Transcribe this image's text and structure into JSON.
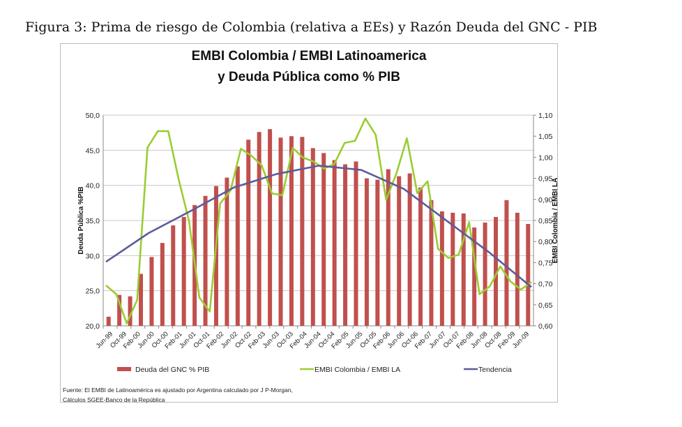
{
  "figure_caption": "Figura 3: Prima de riesgo de Colombia (relativa a EEs) y Razón Deuda del GNC - PIB",
  "chart_data": {
    "type": "bar+line",
    "title_line1": "EMBI Colombia / EMBI Latinoamerica",
    "title_line2": "y Deuda Pública como % PIB",
    "ylabel_left": "Deuda Pública %PIB",
    "ylabel_right": "EMBI Colombia / EMBI LA",
    "ylim_left": [
      20,
      50
    ],
    "ylim_right": [
      0.6,
      1.1
    ],
    "yticks_left": [
      "20,0",
      "25,0",
      "30,0",
      "35,0",
      "40,0",
      "45,0",
      "50,0"
    ],
    "yticks_right": [
      "0,60",
      "0,65",
      "0,70",
      "0,75",
      "0,80",
      "0,85",
      "0,90",
      "0,95",
      "1,00",
      "1,05",
      "1,10"
    ],
    "x_tick_labels": [
      "Jun-99",
      "Oct-99",
      "Feb-00",
      "Jun-00",
      "Oct-00",
      "Feb-01",
      "Jun-01",
      "Oct-01",
      "Feb-02",
      "Jun-02",
      "Oct-02",
      "Feb-03",
      "Jun-03",
      "Oct-03",
      "Feb-04",
      "Jun-04",
      "Oct-04",
      "Feb-05",
      "Jun-05",
      "Oct-05",
      "Feb-06",
      "Jun-06",
      "Oct-06",
      "Feb-07",
      "Jun-07",
      "Oct-07",
      "Feb-08",
      "Jun-08",
      "Oct-08",
      "Feb-09",
      "Jun-09"
    ],
    "grid": true,
    "legend_position": "bottom",
    "series": [
      {
        "name": "Deuda del GNC  % PIB",
        "type": "bar",
        "axis": "left",
        "color": "#c0504d",
        "values": [
          21.3,
          24.4,
          24.2,
          27.4,
          29.8,
          31.8,
          34.3,
          35.5,
          37.2,
          38.5,
          39.9,
          41.1,
          42.7,
          46.5,
          47.6,
          48.0,
          46.8,
          47.0,
          46.9,
          45.3,
          44.6,
          43.6,
          43.0,
          43.4,
          41.0,
          40.8,
          42.3,
          41.3,
          41.7,
          39.7,
          37.9,
          36.3,
          36.1,
          36.0,
          34.0,
          34.7,
          35.5,
          37.9,
          36.1,
          34.5
        ]
      },
      {
        "name": "EMBI Colombia / EMBI LA",
        "type": "line",
        "axis": "right",
        "color": "#9acd32",
        "values": [
          0.696,
          0.675,
          0.606,
          0.661,
          1.023,
          1.062,
          1.062,
          0.948,
          0.849,
          0.667,
          0.634,
          0.89,
          0.921,
          1.02,
          1.004,
          0.981,
          0.914,
          0.91,
          1.022,
          0.999,
          0.99,
          0.973,
          0.984,
          1.034,
          1.039,
          1.092,
          1.053,
          0.899,
          0.962,
          1.045,
          0.915,
          0.943,
          0.783,
          0.761,
          0.769,
          0.846,
          0.675,
          0.694,
          0.741,
          0.705,
          0.686,
          0.704
        ]
      },
      {
        "name": "Tendencia",
        "type": "line",
        "axis": "right",
        "color": "#5b5b9b",
        "values": [
          0.752,
          0.82,
          0.873,
          0.928,
          0.96,
          0.98,
          0.97,
          0.925,
          0.85,
          0.775,
          0.692
        ]
      }
    ]
  },
  "footnote_line1": "Fuente: El EMBI de Latinoamérica es ajustado por Argentina calculado por J P-Morgan,",
  "footnote_line2": "Cálculos SGEE-Banco de la República"
}
